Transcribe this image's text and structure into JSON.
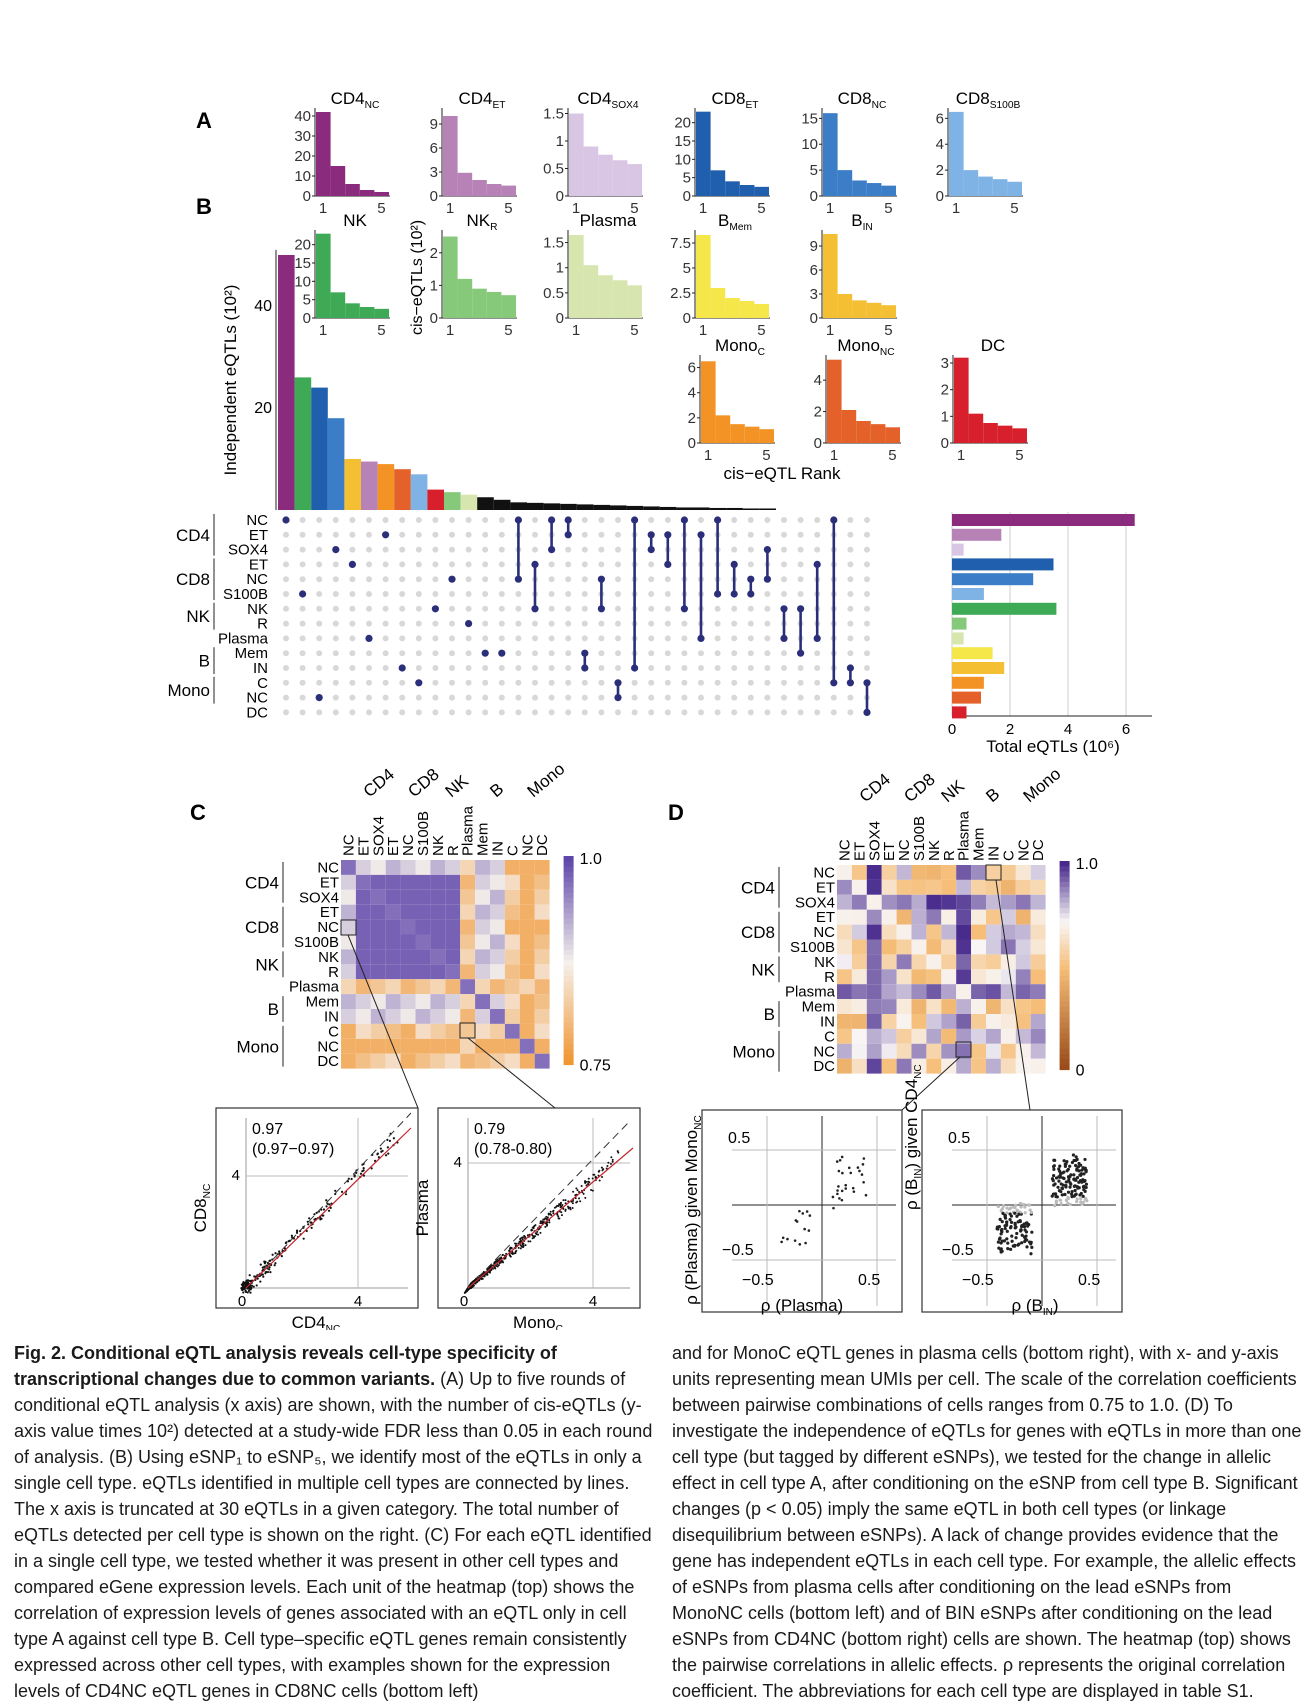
{
  "figure": {
    "panel_labels": {
      "A": "A",
      "B": "B",
      "C": "C",
      "D": "D"
    },
    "panel_a": {
      "x_label": "cis−eQTL Rank",
      "y_label": "cis−eQTLs (10²)",
      "x_ticks": [
        "1",
        "5"
      ],
      "charts": [
        {
          "key": "cd4nc",
          "name": "CD4",
          "sub": "NC",
          "color": "#8b2b7d",
          "values": [
            42,
            15,
            6,
            3,
            2
          ],
          "ymax": 44,
          "yticks": [
            0,
            10,
            20,
            30,
            40
          ]
        },
        {
          "key": "cd4et",
          "name": "CD4",
          "sub": "ET",
          "color": "#b782b6",
          "values": [
            10,
            2.9,
            2,
            1.5,
            1.3
          ],
          "ymax": 11,
          "yticks": [
            0,
            3,
            6,
            9
          ]
        },
        {
          "key": "cd4sox4",
          "name": "CD4",
          "sub": "SOX4",
          "color": "#d8c6e4",
          "values": [
            1.5,
            0.9,
            0.75,
            0.65,
            0.58
          ],
          "ymax": 1.6,
          "yticks": [
            0,
            0.5,
            1.0,
            1.5
          ]
        },
        {
          "key": "cd8et",
          "name": "CD8",
          "sub": "ET",
          "color": "#1f5fae",
          "values": [
            23,
            7,
            4,
            3,
            2.5
          ],
          "ymax": 24,
          "yticks": [
            0,
            5,
            10,
            15,
            20
          ]
        },
        {
          "key": "cd8nc",
          "name": "CD8",
          "sub": "NC",
          "color": "#3b7dc7",
          "values": [
            16,
            5,
            3,
            2.5,
            2
          ],
          "ymax": 17,
          "yticks": [
            0,
            5,
            10,
            15
          ]
        },
        {
          "key": "cd8s100b",
          "name": "CD8",
          "sub": "S100B",
          "color": "#7fb2e5",
          "values": [
            6.5,
            2,
            1.5,
            1.3,
            1.1
          ],
          "ymax": 6.8,
          "yticks": [
            0,
            2,
            4,
            6
          ]
        },
        {
          "key": "nk",
          "name": "NK",
          "sub": "",
          "color": "#3faa55",
          "values": [
            23,
            7,
            4,
            3,
            2.5
          ],
          "ymax": 24,
          "yticks": [
            0,
            5,
            10,
            15,
            20
          ]
        },
        {
          "key": "nkr",
          "name": "NK",
          "sub": "R",
          "color": "#86c97a",
          "values": [
            2.5,
            1.2,
            0.9,
            0.8,
            0.7
          ],
          "ymax": 2.7,
          "yticks": [
            0,
            1,
            2
          ]
        },
        {
          "key": "plasma",
          "name": "Plasma",
          "sub": "",
          "color": "#d7e5ae",
          "values": [
            1.65,
            1.05,
            0.85,
            0.75,
            0.65
          ],
          "ymax": 1.75,
          "yticks": [
            0,
            0.5,
            1.0,
            1.5
          ]
        },
        {
          "key": "bmem",
          "name": "B",
          "sub": "Mem",
          "color": "#f5e64a",
          "values": [
            8.3,
            3,
            2,
            1.7,
            1.4
          ],
          "ymax": 8.8,
          "yticks": [
            0,
            2.5,
            5.0,
            7.5
          ]
        },
        {
          "key": "bin",
          "name": "B",
          "sub": "IN",
          "color": "#f4bf33",
          "values": [
            10.5,
            3,
            2.2,
            1.9,
            1.6
          ],
          "ymax": 11,
          "yticks": [
            0,
            3,
            6,
            9
          ]
        },
        {
          "key": "monoc",
          "name": "Mono",
          "sub": "C",
          "color": "#f39325",
          "values": [
            6.5,
            2.2,
            1.5,
            1.3,
            1.1
          ],
          "ymax": 7,
          "yticks": [
            0,
            2,
            4,
            6
          ]
        },
        {
          "key": "mononc",
          "name": "Mono",
          "sub": "NC",
          "color": "#e4622a",
          "values": [
            5.3,
            2.1,
            1.4,
            1.2,
            1.0
          ],
          "ymax": 5.6,
          "yticks": [
            0,
            2,
            4
          ]
        },
        {
          "key": "dc",
          "name": "DC",
          "sub": "",
          "color": "#d7202c",
          "values": [
            3.2,
            1.1,
            0.75,
            0.65,
            0.55
          ],
          "ymax": 3.3,
          "yticks": [
            0,
            1,
            2,
            3
          ]
        }
      ]
    },
    "panel_b": {
      "y_label": "Independent eQTLs (10²)",
      "y_ticks": [
        "20",
        "40"
      ],
      "bar_values": [
        50,
        26,
        24,
        18,
        10,
        9.5,
        9,
        8,
        7,
        4,
        3.5,
        3,
        2.5,
        2,
        1.5,
        1.4,
        1.3,
        1.2,
        1.1,
        1.0,
        0.9,
        0.8,
        0.7,
        0.6,
        0.5,
        0.5,
        0.4,
        0.4,
        0.3,
        0.3
      ],
      "bar_colors": [
        "#8b2b7d",
        "#3faa55",
        "#1f5fae",
        "#3b7dc7",
        "#f4bf33",
        "#b782b6",
        "#f39325",
        "#e4622a",
        "#7fb2e5",
        "#d7202c",
        "#86c97a",
        "#d7e5ae"
      ],
      "row_labels": [
        "NC",
        "ET",
        "SOX4",
        "ET",
        "NC",
        "S100B",
        "NK",
        "R",
        "Plasma",
        "Mem",
        "IN",
        "C",
        "NC",
        "DC"
      ],
      "group_labels": [
        "CD4",
        "CD8",
        "NK",
        "B",
        "Mono"
      ],
      "total_x_label": "Total eQTLs (10⁶)",
      "total_ticks": [
        "0",
        "2",
        "4",
        "6"
      ],
      "totals": [
        6.3,
        1.7,
        0.4,
        3.5,
        2.8,
        1.1,
        3.6,
        0.5,
        0.4,
        1.4,
        1.8,
        1.1,
        1.0,
        0.5
      ]
    },
    "panel_c": {
      "col_labels": [
        "NC",
        "ET",
        "SOX4",
        "ET",
        "NC",
        "S100B",
        "NK",
        "R",
        "Plasma",
        "Mem",
        "IN",
        "C",
        "NC",
        "DC"
      ],
      "groups": [
        "CD4",
        "CD8",
        "NK",
        "B",
        "Mono"
      ],
      "scale_max": "1.0",
      "scale_min": "0.75",
      "scatter_left": {
        "r": "0.97",
        "ci": "(0.97−0.97)",
        "x_label": "CD4",
        "x_sub": "NC",
        "y_label": "CD8",
        "y_sub": "NC",
        "tick_0": "0",
        "tick_4": "4"
      },
      "scatter_right": {
        "r": "0.79",
        "ci": "(0.78-0.80)",
        "x_label": "Mono",
        "x_sub": "C",
        "y_label": "Plasma",
        "y_sub": "",
        "tick_0": "0",
        "tick_4": "4"
      }
    },
    "panel_d": {
      "scale_max": "1.0",
      "scale_min": "0",
      "scatter_left": {
        "x_label": "ρ (Plasma)",
        "y_label": "ρ (Plasma) given Mono",
        "y_sub": "NC",
        "pos": "0.5",
        "neg": "−0.5"
      },
      "scatter_right": {
        "x_label": "ρ (B",
        "x_sub": "IN",
        "y_label": "ρ (B",
        "y_sub": "IN",
        "y_tail": ") given CD4",
        "y_tail_sub": "NC",
        "pos": "0.5",
        "neg": "−0.5"
      }
    }
  },
  "caption": {
    "fig_title": "Fig. 2. Conditional eQTL analysis reveals cell-type specificity of transcriptional changes due to common variants.",
    "left_text": "(A) Up to five rounds of conditional eQTL analysis (x axis) are shown, with the number of cis-eQTLs (y-axis value times 10²) detected at a study-wide FDR less than 0.05 in each round of analysis. (B) Using eSNP₁ to eSNP₅, we identify most of the eQTLs in only a single cell type. eQTLs identified in multiple cell types are connected by lines. The x axis is truncated at 30 eQTLs in a given category. The total number of eQTLs detected per cell type is shown on the right. (C) For each eQTL identified in a single cell type, we tested whether it was present in other cell types and compared eGene expression levels. Each unit of the heatmap (top) shows the correlation of expression levels of genes associated with an eQTL only in cell type A against cell type B. Cell type–specific eQTL genes remain consistently expressed across other cell types, with examples shown for the expression levels of CD4NC eQTL genes in CD8NC cells (bottom left)",
    "right_text": "and for MonoC eQTL genes in plasma cells (bottom right), with x- and y-axis units representing mean UMIs per cell. The scale of the correlation coefficients between pairwise combinations of cells ranges from 0.75 to 1.0. (D) To investigate the independence of eQTLs for genes with eQTLs in more than one cell type (but tagged by different eSNPs), we tested for the change in allelic effect in cell type A, after conditioning on the eSNP from cell type B. Significant changes (p < 0.05) imply the same eQTL in both cell types (or linkage disequilibrium between eSNPs). A lack of change provides evidence that the gene has independent eQTLs in each cell type. For example, the allelic effects of eSNPs from plasma cells after conditioning on the lead eSNPs from MonoNC cells (bottom left) and of BIN eSNPs after conditioning on the lead eSNPs from CD4NC (bottom right) cells are shown. The heatmap (top) shows the pairwise correlations in allelic effects. ρ represents the original correlation coefficient. The abbreviations for each cell type are displayed in table S1."
  }
}
